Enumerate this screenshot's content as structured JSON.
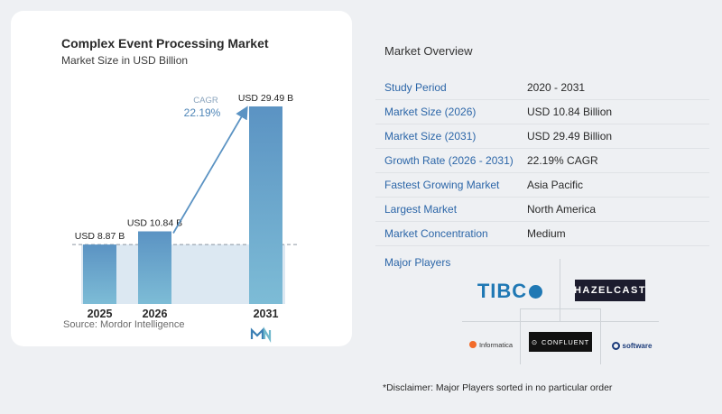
{
  "chart_data": {
    "type": "bar",
    "title": "Complex Event Processing Market",
    "subtitle": "Market Size in USD Billion",
    "categories": [
      "2025",
      "2026",
      "2031"
    ],
    "values": [
      8.87,
      10.84,
      29.49
    ],
    "value_labels": [
      "USD 8.87 B",
      "USD 10.84 B",
      "USD 29.49 B"
    ],
    "cagr_label": "CAGR",
    "cagr_value": "22.19%",
    "colors": {
      "bar_top": "#5b93c3",
      "bar_bottom": "#7dbcd6",
      "band": "#dce8f2",
      "arrow": "#5b93c3"
    },
    "ylim": [
      0,
      30
    ]
  },
  "source": "Source:  Mordor Intelligence",
  "overview": {
    "title": "Market Overview",
    "rows": [
      {
        "label": "Study Period",
        "value": "2020 - 2031"
      },
      {
        "label": "Market Size (2026)",
        "value": "USD 10.84 Billion"
      },
      {
        "label": "Market Size (2031)",
        "value": "USD 29.49 Billion"
      },
      {
        "label": "Growth Rate (2026 - 2031)",
        "value": "22.19% CAGR"
      },
      {
        "label": "Fastest Growing Market",
        "value": "Asia Pacific"
      },
      {
        "label": "Largest Market",
        "value": "North America"
      },
      {
        "label": "Market Concentration",
        "value": "Medium"
      }
    ]
  },
  "players": {
    "title": "Major Players",
    "logos": {
      "tibco": "TIBC",
      "hazelcast": "HAZELCAST",
      "confluent": "CONFLUENT",
      "informatica": "Informatica",
      "softwareag": "software"
    }
  },
  "disclaimer": "*Disclaimer: Major Players sorted in no particular order"
}
